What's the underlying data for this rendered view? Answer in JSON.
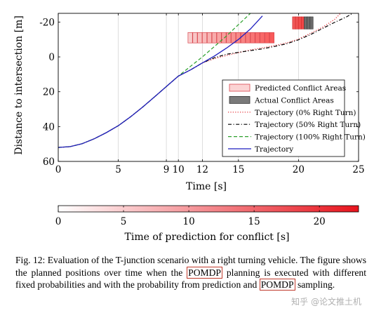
{
  "chart_data": {
    "type": "line",
    "ylabel": "Distance to intersection [m]",
    "xlabel": "Time [s]",
    "xlim": [
      0,
      25
    ],
    "ylim": [
      60,
      -25
    ],
    "y_inverted": true,
    "x_ticks": [
      "0",
      "5",
      "9",
      "10",
      "12",
      "15",
      "20",
      "25"
    ],
    "x_tick_values": [
      0,
      5,
      9,
      10,
      12,
      15,
      20,
      25
    ],
    "y_ticks": [
      "-20",
      "0",
      "20",
      "40",
      "60"
    ],
    "y_tick_values": [
      -20,
      0,
      20,
      40,
      60
    ],
    "grid": "vertical-only",
    "legend_position": "bottom-right",
    "series": [
      {
        "name": "Trajectory (0% Right Turn)",
        "style": "dotted",
        "color": "#e8474d",
        "x": [
          0,
          1,
          2,
          3,
          4,
          5,
          6,
          7,
          8,
          9,
          10,
          11,
          12,
          13,
          14,
          15,
          16,
          17,
          18,
          19,
          20,
          21,
          22,
          23,
          23.5
        ],
        "y": [
          52,
          51.5,
          49.8,
          47,
          43.5,
          39.5,
          34.5,
          29,
          23,
          17,
          11,
          7.5,
          3.5,
          1.0,
          -0.8,
          -2.5,
          -4,
          -5.2,
          -6.5,
          -8,
          -10.2,
          -13.5,
          -17,
          -21.5,
          -25
        ]
      },
      {
        "name": "Trajectory (50% Right Turn)",
        "style": "dashdot",
        "color": "#000000",
        "x": [
          0,
          1,
          2,
          3,
          4,
          5,
          6,
          7,
          8,
          9,
          10,
          11,
          12,
          13,
          14,
          15,
          16,
          17,
          18,
          19,
          20,
          21,
          22,
          23,
          24,
          24.5
        ],
        "y": [
          52,
          51.5,
          49.8,
          47,
          43.5,
          39.5,
          34.5,
          29,
          23,
          17,
          11,
          7.5,
          3.5,
          0.5,
          -1.5,
          -2.6,
          -3.6,
          -4.6,
          -6,
          -7.5,
          -9.8,
          -12.8,
          -16.3,
          -19.8,
          -23,
          -25
        ]
      },
      {
        "name": "Trajectory (100% Right Turn)",
        "style": "dashed",
        "color": "#2ca02c",
        "x": [
          0,
          1,
          2,
          3,
          4,
          5,
          6,
          7,
          8,
          9,
          10,
          11,
          12,
          13,
          14,
          15,
          16
        ],
        "y": [
          52,
          51.5,
          49.8,
          47,
          43.5,
          39.5,
          34.5,
          29,
          23,
          17,
          11,
          5.5,
          0,
          -6,
          -12,
          -18.5,
          -25
        ]
      },
      {
        "name": "Trajectory",
        "style": "solid",
        "color": "#1f1fbf",
        "x": [
          0,
          1,
          2,
          3,
          4,
          5,
          6,
          7,
          8,
          9,
          10,
          11,
          12,
          13,
          14,
          15,
          16,
          17
        ],
        "y": [
          52,
          51.5,
          49.8,
          47,
          43.5,
          39.5,
          34.5,
          29,
          23,
          17,
          11,
          7.5,
          3.5,
          -0.5,
          -5,
          -10,
          -16,
          -23.5
        ]
      }
    ],
    "predicted_conflict_areas": {
      "label": "Predicted Conflict Areas",
      "y_range": [
        -14,
        -8
      ],
      "x_start": 10.8,
      "x_end": 18.0,
      "count": 18
    },
    "actual_conflict_areas": {
      "label": "Actual Conflict Areas",
      "y_range": [
        -23,
        -16
      ],
      "x_start": 19.5,
      "x_end": 21.2,
      "count": 7
    },
    "colorbar": {
      "label": "Time of prediction for conflict [s]",
      "min": 0,
      "max": 23,
      "ticks": [
        "0",
        "5",
        "10",
        "15",
        "20"
      ],
      "tick_values": [
        0,
        5,
        10,
        15,
        20
      ],
      "color_low": "#ffffff",
      "color_high": "#e8141d"
    }
  },
  "caption": {
    "part1": "Fig. 12: Evaluation of the T-junction scenario with a right turning vehicle. The figure shows the planned positions over time when the ",
    "term1": "POMDP",
    "part2": " planning is executed with different fixed probabilities and with the probability from prediction and ",
    "term2": "POMDP",
    "part3": " sampling."
  },
  "watermark": "知乎 @论文推土机"
}
